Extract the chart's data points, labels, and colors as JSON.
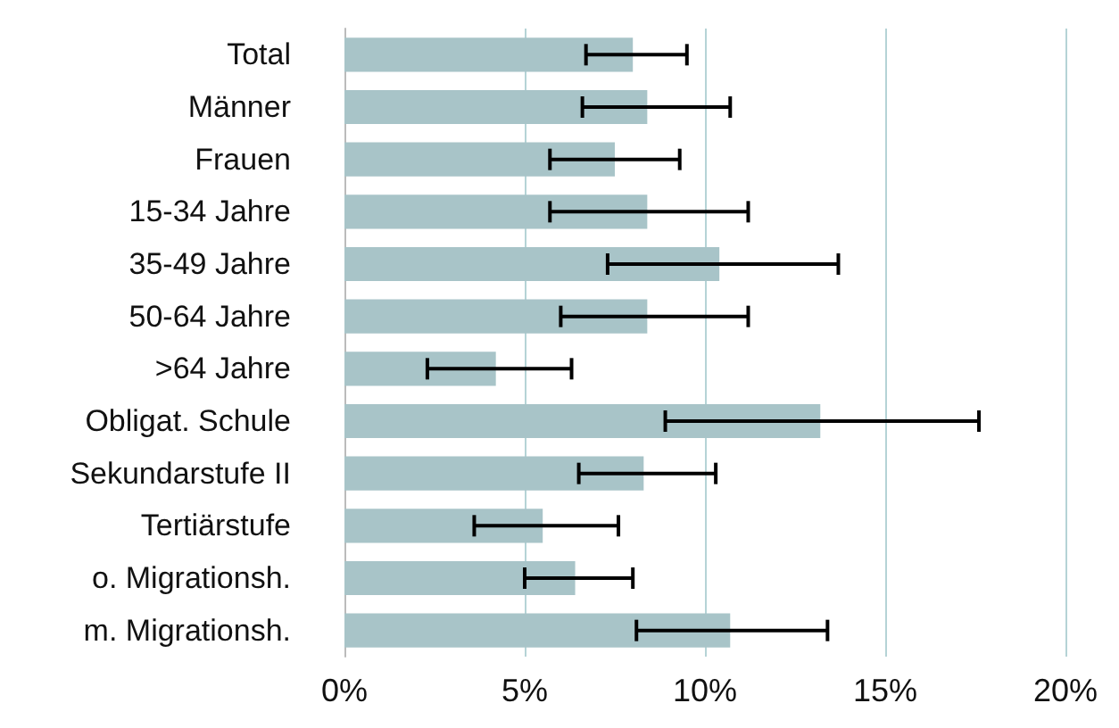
{
  "chart_data": {
    "type": "bar",
    "orientation": "horizontal",
    "categories": [
      "Total",
      "Männer",
      "Frauen",
      "15-34 Jahre",
      "35-49 Jahre",
      "50-64 Jahre",
      ">64 Jahre",
      "Obligat. Schule",
      "Sekundarstufe II",
      "Tertiärstufe",
      "o. Migrationsh.",
      "m. Migrationsh."
    ],
    "values": [
      8.0,
      8.4,
      7.5,
      8.4,
      10.4,
      8.4,
      4.2,
      13.2,
      8.3,
      5.5,
      6.4,
      10.7
    ],
    "errors": [
      [
        6.7,
        9.5
      ],
      [
        6.6,
        10.7
      ],
      [
        5.7,
        9.3
      ],
      [
        5.7,
        11.2
      ],
      [
        7.3,
        13.7
      ],
      [
        6.0,
        11.2
      ],
      [
        2.3,
        6.3
      ],
      [
        8.9,
        17.6
      ],
      [
        6.5,
        10.3
      ],
      [
        3.6,
        7.6
      ],
      [
        5.0,
        8.0
      ],
      [
        8.1,
        13.4
      ]
    ],
    "color": "#a8c4c8",
    "xlim": [
      0,
      20
    ],
    "xticks": [
      {
        "value": 0,
        "label": "0%"
      },
      {
        "value": 5,
        "label": "5%"
      },
      {
        "value": 10,
        "label": "10%"
      },
      {
        "value": 15,
        "label": "15%"
      },
      {
        "value": 20,
        "label": "20%"
      }
    ],
    "grid": "x"
  }
}
